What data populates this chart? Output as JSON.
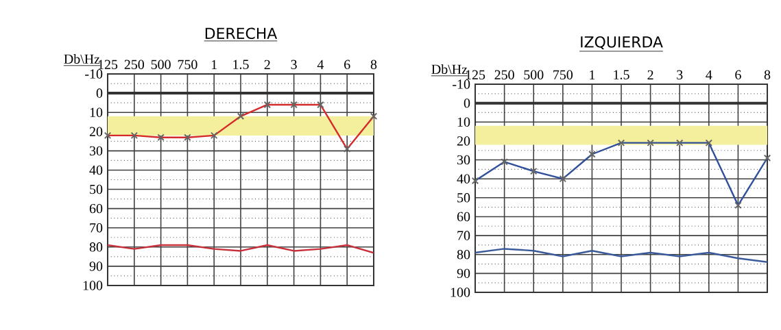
{
  "chart_data": [
    {
      "type": "line",
      "title": "DERECHA",
      "ylabel": "Db\\Hz",
      "categories": [
        "125",
        "250",
        "500",
        "750",
        "1",
        "1.5",
        "2",
        "3",
        "4",
        "6",
        "8"
      ],
      "ylim": [
        100,
        -10
      ],
      "yticks": [
        -10,
        0,
        10,
        20,
        30,
        40,
        50,
        60,
        70,
        80,
        90,
        100
      ],
      "grid": true,
      "line_style": "solid",
      "ref_lines": [
        {
          "axis": "y",
          "value": 0,
          "color": "#333333"
        }
      ],
      "bands": [
        {
          "axis": "y",
          "from": 12,
          "to": 22,
          "color": "#f3ef9c"
        }
      ],
      "series": [
        {
          "color": "#d42a2a",
          "marker": "cross",
          "values": [
            22,
            22,
            23,
            23,
            22,
            12,
            6,
            6,
            6,
            29,
            12
          ]
        },
        {
          "color": "#c8303a",
          "marker": "none",
          "values": [
            79,
            81,
            79,
            79,
            81,
            82,
            79,
            82,
            81,
            79,
            83
          ]
        }
      ]
    },
    {
      "type": "line",
      "title": "IZQUIERDA",
      "ylabel": "Db\\Hz",
      "categories": [
        "125",
        "250",
        "500",
        "750",
        "1",
        "1.5",
        "2",
        "3",
        "4",
        "6",
        "8"
      ],
      "ylim": [
        100,
        -10
      ],
      "yticks": [
        -10,
        0,
        10,
        20,
        30,
        40,
        50,
        60,
        70,
        80,
        90,
        100
      ],
      "grid": true,
      "line_style": "solid",
      "ref_lines": [
        {
          "axis": "y",
          "value": 0,
          "color": "#333333"
        }
      ],
      "bands": [
        {
          "axis": "y",
          "from": 12,
          "to": 22,
          "color": "#f3ef9c"
        }
      ],
      "series": [
        {
          "color": "#2f4f9a",
          "marker": "cross",
          "values": [
            41,
            31,
            36,
            40,
            27,
            21,
            21,
            21,
            21,
            54,
            29
          ]
        },
        {
          "color": "#3a5a9a",
          "marker": "none",
          "values": [
            79,
            77,
            78,
            81,
            78,
            81,
            79,
            81,
            79,
            82,
            84
          ]
        }
      ]
    }
  ]
}
